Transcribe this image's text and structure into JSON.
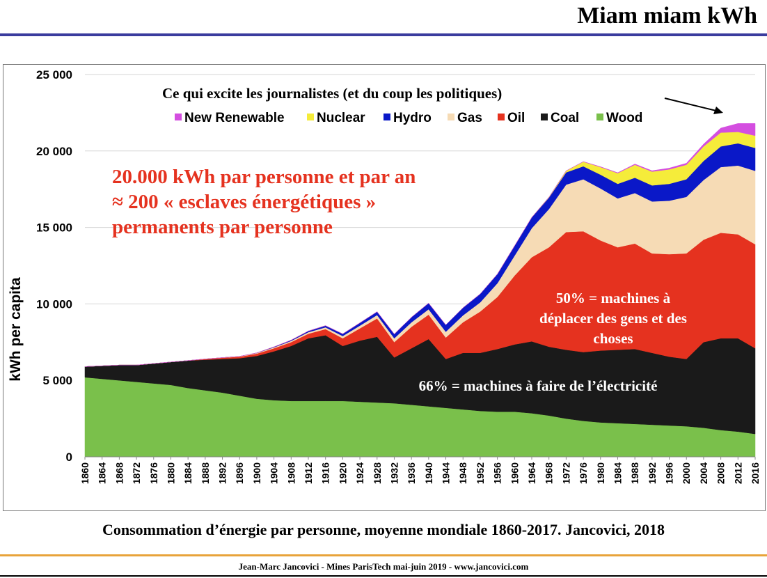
{
  "slide": {
    "title": "Miam miam kWh",
    "caption": "Consommation d’énergie par personne, moyenne mondiale 1860-2017. Jancovici, 2018",
    "footer": "Jean-Marc Jancovici - Mines ParisTech mai-juin 2019 - www.jancovici.com"
  },
  "colors": {
    "title_rule": "#3a3c9e",
    "footer_rule": "#e8a33a",
    "highlight_text": "#e5321f"
  },
  "annotations": {
    "journalists": "Ce qui excite les journalistes (et du coup les politiques)",
    "headline_1": "20.000 kWh par personne et par an",
    "headline_2": "≈ 200 « esclaves énergétiques »",
    "headline_3": "permanents par personne",
    "oil_note_1": "50% = machines à",
    "oil_note_2": "déplacer des gens et des",
    "oil_note_3": "choses",
    "coal_note": "66% = machines à faire de l’électricité"
  },
  "chart_data": {
    "type": "area",
    "stacked": true,
    "ylabel": "kWh per capita",
    "xlabel": "",
    "ylim": [
      0,
      25000
    ],
    "y_ticks": [
      0,
      5000,
      10000,
      15000,
      20000,
      25000
    ],
    "y_tick_labels": [
      "0",
      "5 000",
      "10 000",
      "15 000",
      "20 000",
      "25 000"
    ],
    "grid": true,
    "legend_position": "top",
    "x_tick_labels": [
      "1860",
      "1864",
      "1868",
      "1872",
      "1876",
      "1880",
      "1884",
      "1888",
      "1892",
      "1896",
      "1900",
      "1904",
      "1908",
      "1912",
      "1916",
      "1920",
      "1924",
      "1928",
      "1932",
      "1936",
      "1940",
      "1944",
      "1948",
      "1952",
      "1956",
      "1960",
      "1964",
      "1968",
      "1972",
      "1976",
      "1980",
      "1984",
      "1988",
      "1992",
      "1996",
      "2000",
      "2004",
      "2008",
      "2012",
      "2016"
    ],
    "x": [
      1860,
      1864,
      1868,
      1872,
      1876,
      1880,
      1884,
      1888,
      1892,
      1896,
      1900,
      1904,
      1908,
      1912,
      1916,
      1920,
      1924,
      1928,
      1932,
      1936,
      1940,
      1944,
      1948,
      1952,
      1956,
      1960,
      1964,
      1968,
      1972,
      1976,
      1980,
      1984,
      1988,
      1992,
      1996,
      2000,
      2004,
      2008,
      2012,
      2016
    ],
    "series": [
      {
        "name": "Wood",
        "color": "#7ac04b",
        "values": [
          5200,
          5100,
          5000,
          4900,
          4800,
          4700,
          4500,
          4350,
          4200,
          4000,
          3800,
          3700,
          3650,
          3650,
          3650,
          3650,
          3600,
          3550,
          3500,
          3400,
          3300,
          3200,
          3100,
          3000,
          2950,
          2950,
          2850,
          2700,
          2500,
          2350,
          2250,
          2200,
          2150,
          2100,
          2050,
          2000,
          1900,
          1750,
          1650,
          1500
        ]
      },
      {
        "name": "Coal",
        "color": "#1a1a1a",
        "values": [
          700,
          850,
          1000,
          1100,
          1300,
          1500,
          1800,
          2000,
          2200,
          2450,
          2800,
          3200,
          3600,
          4100,
          4300,
          3600,
          4000,
          4300,
          3000,
          3700,
          4400,
          3200,
          3700,
          3800,
          4100,
          4400,
          4700,
          4500,
          4500,
          4500,
          4700,
          4800,
          4900,
          4700,
          4500,
          4400,
          5600,
          6000,
          6100,
          5600
        ]
      },
      {
        "name": "Oil",
        "color": "#e5321f",
        "values": [
          0,
          0,
          0,
          0,
          0,
          0,
          0,
          50,
          80,
          100,
          150,
          200,
          250,
          300,
          400,
          500,
          800,
          1200,
          1000,
          1400,
          1600,
          1400,
          2000,
          2700,
          3400,
          4500,
          5500,
          6500,
          7700,
          7900,
          7200,
          6700,
          6900,
          6500,
          6700,
          6900,
          6700,
          6900,
          6800,
          6800
        ]
      },
      {
        "name": "Gas",
        "color": "#f6dbb5",
        "values": [
          0,
          0,
          0,
          0,
          0,
          0,
          0,
          0,
          10,
          20,
          40,
          60,
          80,
          100,
          120,
          150,
          180,
          220,
          250,
          300,
          350,
          380,
          450,
          600,
          900,
          1300,
          1900,
          2500,
          3100,
          3400,
          3400,
          3200,
          3300,
          3400,
          3500,
          3700,
          3900,
          4300,
          4500,
          4800
        ]
      },
      {
        "name": "Hydro",
        "color": "#0a18c8",
        "values": [
          0,
          0,
          0,
          0,
          0,
          0,
          0,
          0,
          0,
          0,
          10,
          30,
          50,
          80,
          110,
          140,
          180,
          220,
          280,
          330,
          400,
          450,
          500,
          550,
          600,
          650,
          700,
          750,
          800,
          850,
          900,
          950,
          1000,
          1050,
          1100,
          1150,
          1250,
          1350,
          1450,
          1500
        ]
      },
      {
        "name": "Nuclear",
        "color": "#f5ec3a",
        "values": [
          0,
          0,
          0,
          0,
          0,
          0,
          0,
          0,
          0,
          0,
          0,
          0,
          0,
          0,
          0,
          0,
          0,
          0,
          0,
          0,
          0,
          0,
          0,
          0,
          0,
          0,
          10,
          30,
          100,
          300,
          500,
          700,
          850,
          900,
          950,
          950,
          950,
          900,
          750,
          800
        ]
      },
      {
        "name": "New Renewable",
        "color": "#d44ee0",
        "values": [
          0,
          0,
          0,
          0,
          0,
          0,
          0,
          0,
          0,
          0,
          0,
          0,
          0,
          0,
          0,
          0,
          0,
          0,
          0,
          0,
          0,
          0,
          0,
          0,
          0,
          0,
          0,
          0,
          0,
          10,
          20,
          30,
          50,
          60,
          80,
          100,
          150,
          300,
          550,
          800
        ]
      }
    ],
    "legend_order": [
      "New Renewable",
      "Nuclear",
      "Hydro",
      "Gas",
      "Oil",
      "Coal",
      "Wood"
    ]
  }
}
